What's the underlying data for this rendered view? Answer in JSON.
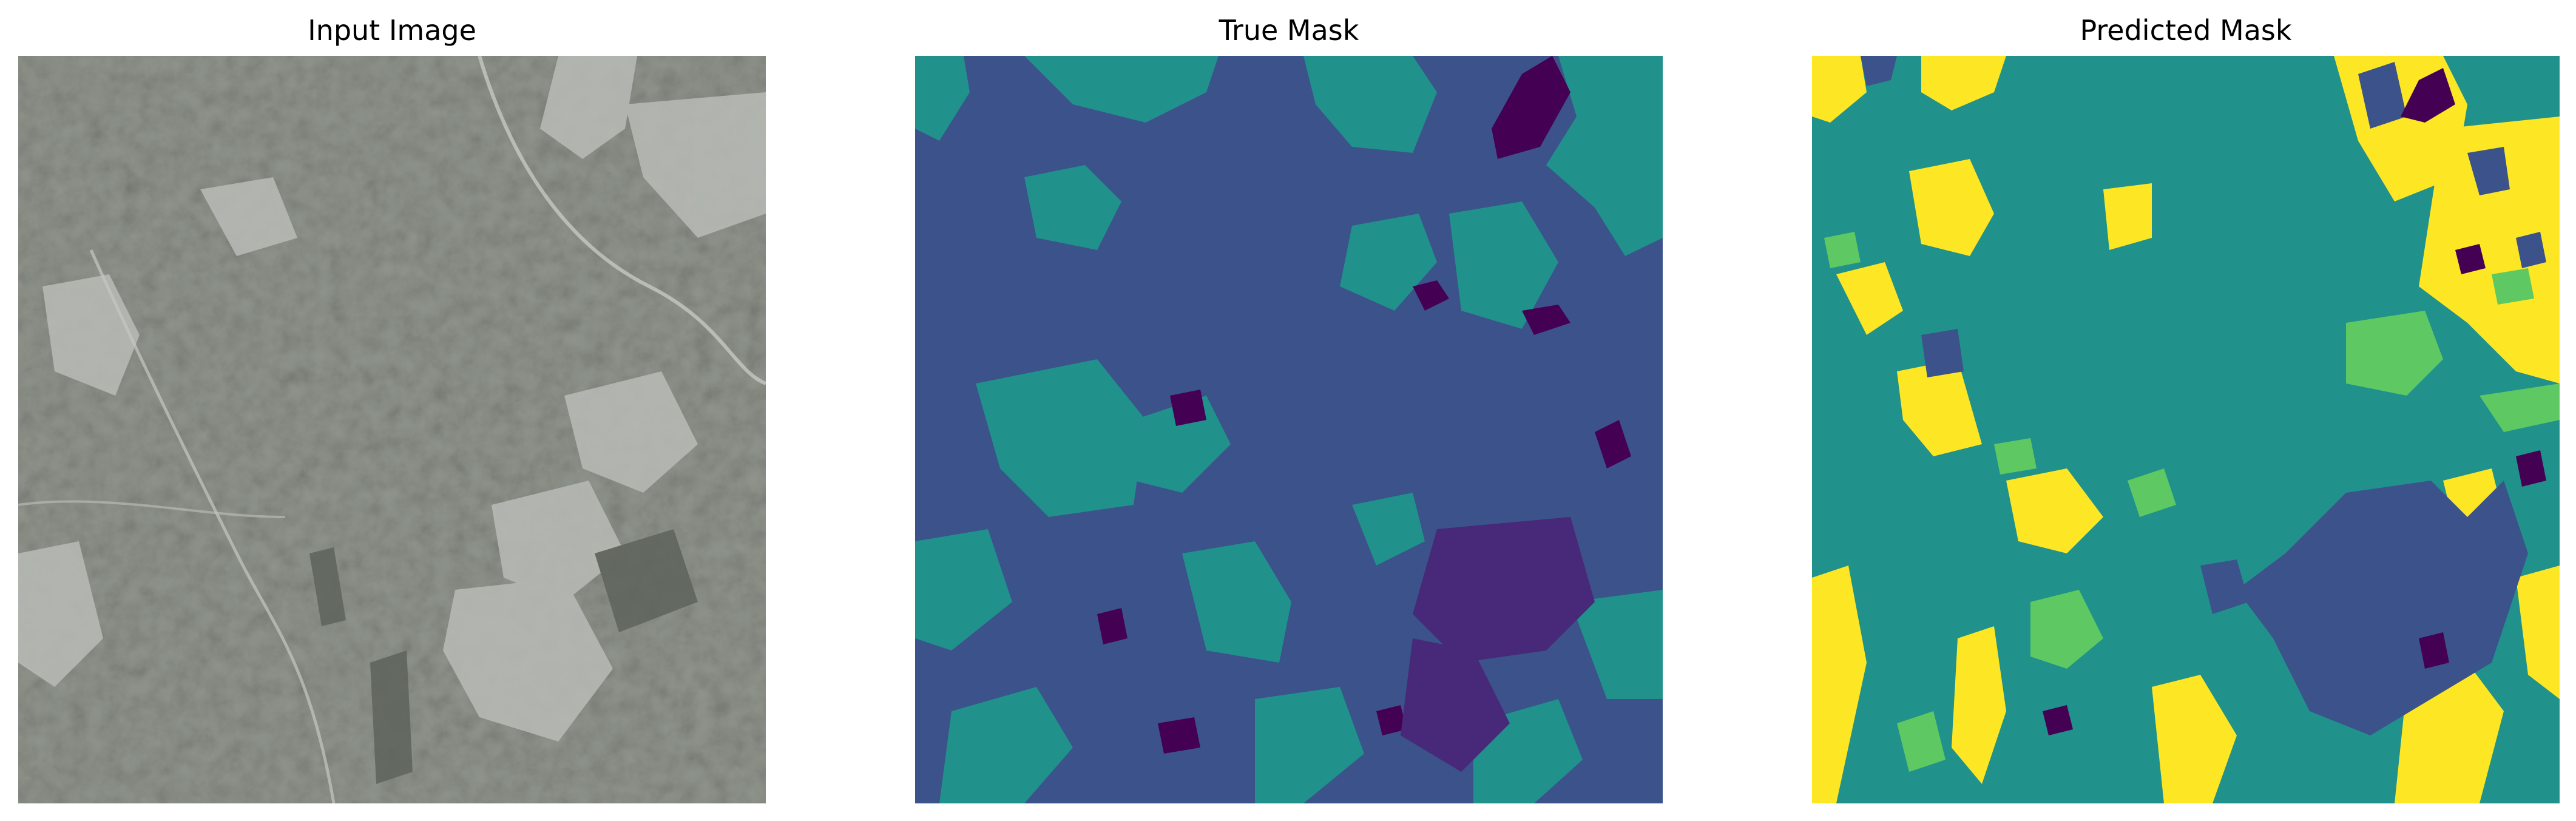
{
  "panels": [
    {
      "title": "Input Image"
    },
    {
      "title": "True Mask"
    },
    {
      "title": "Predicted Mask"
    }
  ],
  "colors": {
    "class0": "#440154",
    "class1": "#3b528b",
    "class2": "#21918c",
    "class3": "#5ec962",
    "class4": "#fde725",
    "terrain_base": "#8f948c",
    "terrain_dark": "#5e645c",
    "terrain_light": "#b9bcb6"
  }
}
